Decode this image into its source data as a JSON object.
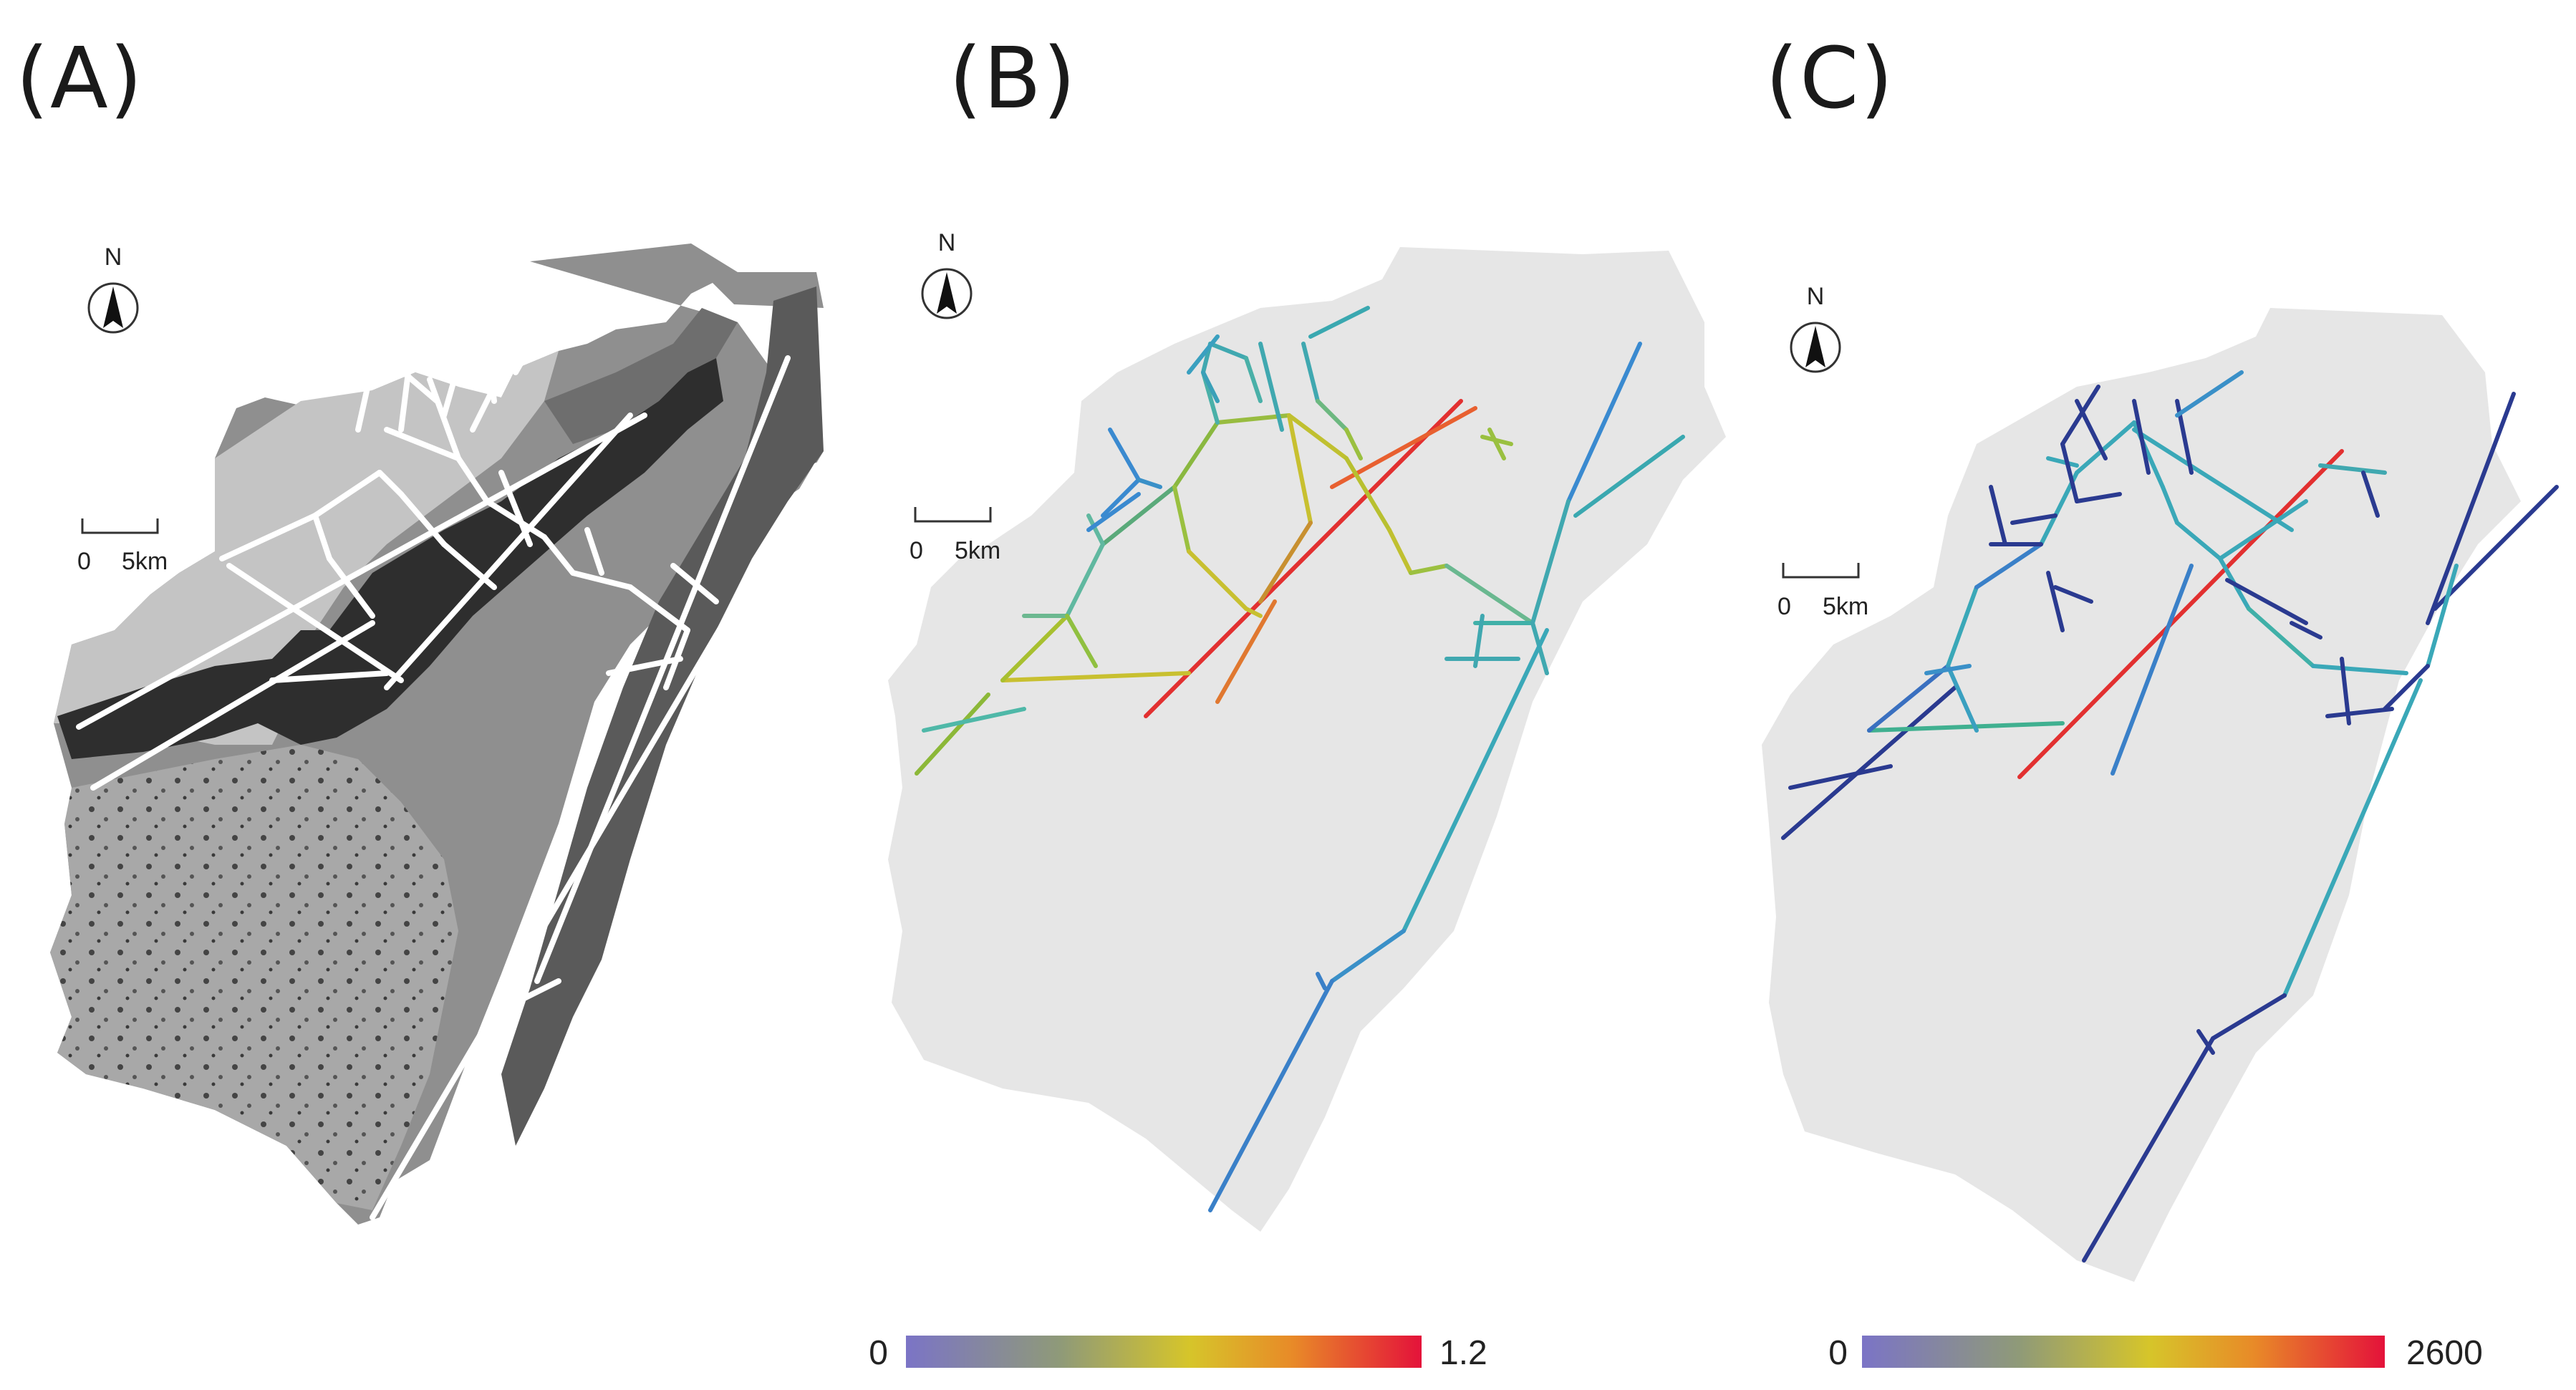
{
  "panels": [
    {
      "label": "(A)",
      "north": "N",
      "scale_zero": "0",
      "scale_unit": "5km"
    },
    {
      "label": "(B)",
      "north": "N",
      "scale_zero": "0",
      "scale_unit": "5km",
      "legend": {
        "min": "0",
        "max": "1.2"
      }
    },
    {
      "label": "(C)",
      "north": "N",
      "scale_zero": "0",
      "scale_unit": "5km",
      "legend": {
        "min": "0",
        "max": "2600"
      }
    }
  ],
  "colors": {
    "region_fill": "#e6e6e6",
    "ramp": [
      "#7b74c6",
      "#8a8f7a",
      "#c6c23a",
      "#e0a020",
      "#e86a26",
      "#e4123a"
    ],
    "network_white": "#ffffff",
    "terrain_dark": "#2e2e2e",
    "terrain_mid": "#7a7a7a",
    "terrain_light": "#bdbdbd"
  }
}
